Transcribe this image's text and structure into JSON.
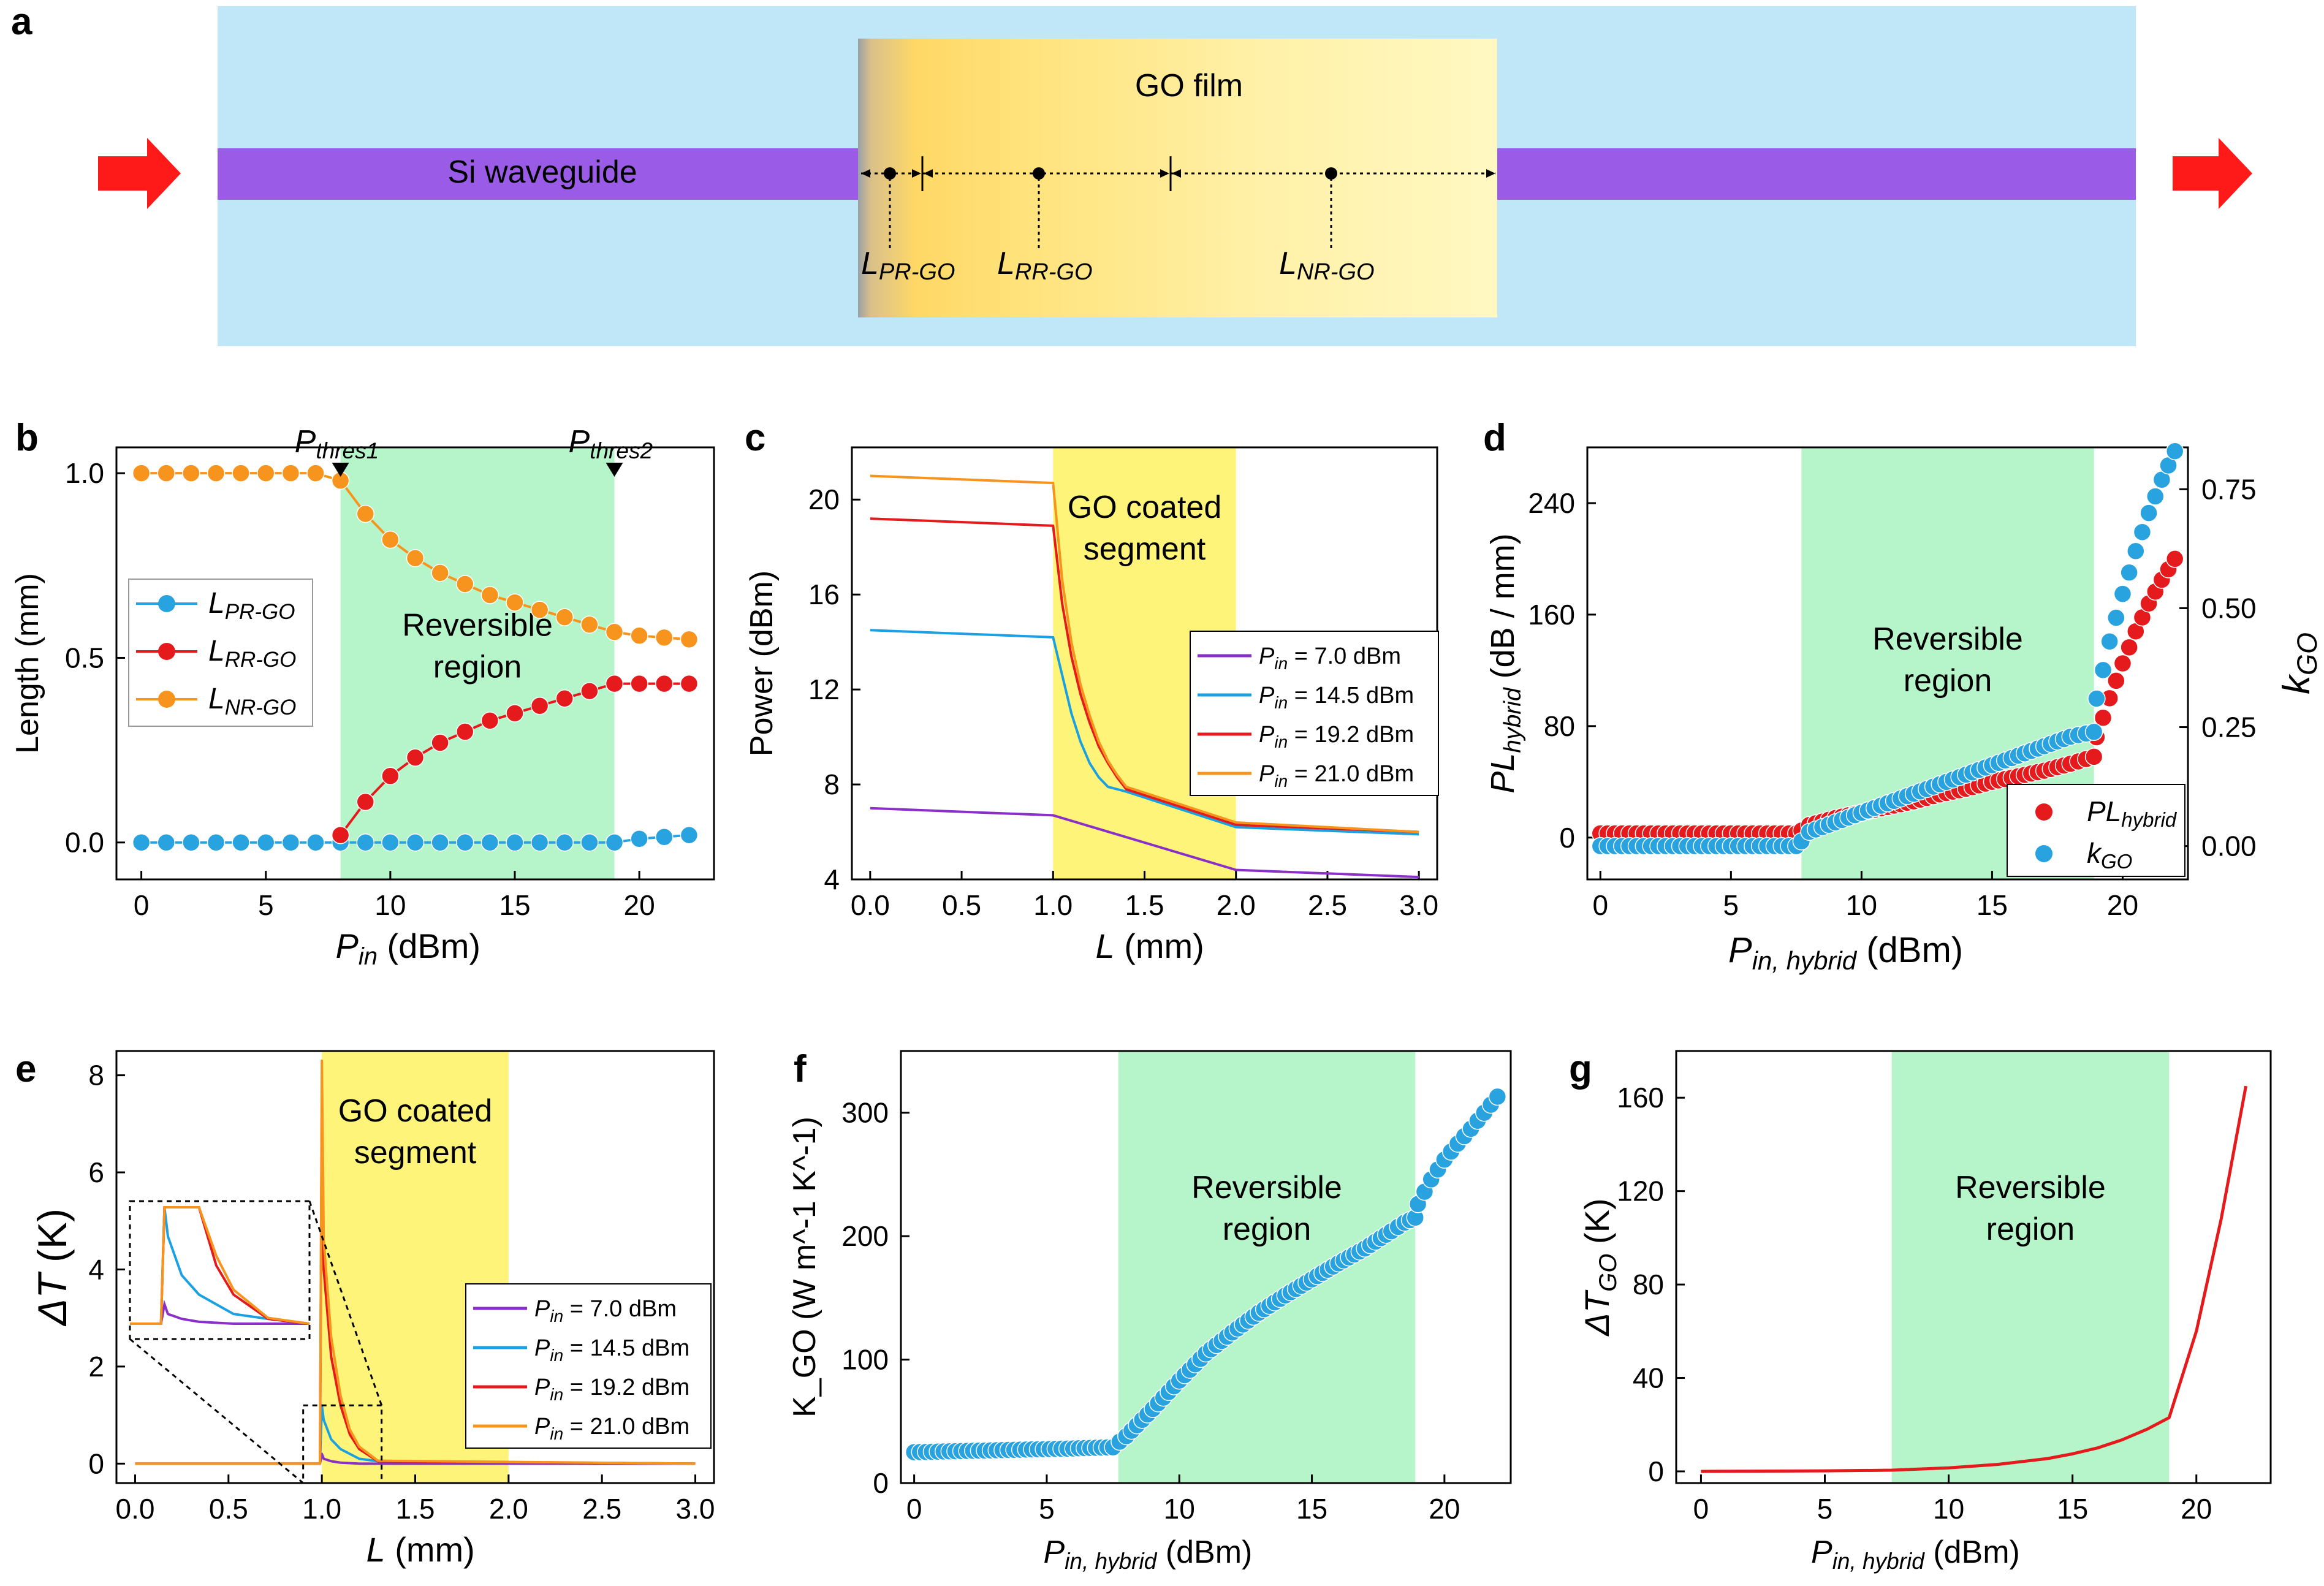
{
  "figure": {
    "panel_a": {
      "letter": "a",
      "film_label": "GO film",
      "waveguide_label": "Si waveguide",
      "lengths": [
        {
          "main": "L",
          "sub": "PR-GO"
        },
        {
          "main": "L",
          "sub": "RR-GO"
        },
        {
          "main": "L",
          "sub": "NR-GO"
        }
      ]
    }
  },
  "chart_data": [
    {
      "id": "b",
      "letter": "b",
      "type": "scatter",
      "xlim": [
        -1,
        23
      ],
      "ylim": [
        -0.1,
        1.07
      ],
      "xticks": [
        0,
        5,
        10,
        15,
        20
      ],
      "yticks": [
        0.0,
        0.5,
        1.0
      ],
      "xtick_labels": [
        "0",
        "5",
        "10",
        "15",
        "20"
      ],
      "ytick_labels": [
        "0.0",
        "0.5",
        "1.0"
      ],
      "xlabel": {
        "main": "P",
        "sub": "in",
        "tail": " (dBm)"
      },
      "ylabel": "Length (mm)",
      "region": {
        "x": [
          8.0,
          19.0
        ],
        "label": [
          "Reversible",
          "region"
        ]
      },
      "thresholds": [
        {
          "x": 8.0,
          "main": "P",
          "sub": "thres1"
        },
        {
          "x": 19.0,
          "main": "P",
          "sub": "thres2"
        }
      ],
      "legend": [
        "L_PR-GO",
        "L_RR-GO",
        "L_NR-GO"
      ],
      "series": [
        {
          "name": "L_PR-GO",
          "main": "L",
          "sub": "PR-GO",
          "color": "#29a3e0",
          "x": [
            0,
            1,
            2,
            3,
            4,
            5,
            6,
            7,
            8,
            9,
            10,
            11,
            12,
            13,
            14,
            15,
            16,
            17,
            18,
            19,
            20,
            21,
            22
          ],
          "y": [
            0,
            0,
            0,
            0,
            0,
            0,
            0,
            0,
            0,
            0,
            0,
            0,
            0,
            0,
            0,
            0,
            0,
            0,
            0,
            0,
            0.01,
            0.015,
            0.02
          ]
        },
        {
          "name": "L_RR-GO",
          "main": "L",
          "sub": "RR-GO",
          "color": "#e41a1c",
          "x": [
            8,
            9,
            10,
            11,
            12,
            13,
            14,
            15,
            16,
            17,
            18,
            19,
            20,
            21,
            22
          ],
          "y": [
            0.02,
            0.11,
            0.18,
            0.23,
            0.27,
            0.3,
            0.33,
            0.35,
            0.37,
            0.39,
            0.41,
            0.43,
            0.43,
            0.43,
            0.43
          ]
        },
        {
          "name": "L_NR-GO",
          "main": "L",
          "sub": "NR-GO",
          "color": "#f7941d",
          "x": [
            0,
            1,
            2,
            3,
            4,
            5,
            6,
            7,
            8,
            9,
            10,
            11,
            12,
            13,
            14,
            15,
            16,
            17,
            18,
            19,
            20,
            21,
            22
          ],
          "y": [
            1,
            1,
            1,
            1,
            1,
            1,
            1,
            1,
            0.98,
            0.89,
            0.82,
            0.77,
            0.73,
            0.7,
            0.67,
            0.65,
            0.63,
            0.61,
            0.59,
            0.57,
            0.56,
            0.555,
            0.55
          ]
        }
      ]
    },
    {
      "id": "c",
      "letter": "c",
      "type": "line",
      "xlim": [
        -0.1,
        3.1
      ],
      "ylim": [
        4,
        22.2
      ],
      "xticks": [
        0,
        0.5,
        1,
        1.5,
        2,
        2.5,
        3
      ],
      "yticks": [
        4,
        8,
        12,
        16,
        20
      ],
      "xtick_labels": [
        "0.0",
        "0.5",
        "1.0",
        "1.5",
        "2.0",
        "2.5",
        "3.0"
      ],
      "ytick_labels": [
        "4",
        "8",
        "12",
        "16",
        "20"
      ],
      "xlabel": {
        "main": "L",
        "sub": "",
        "tail": " (mm)"
      },
      "ylabel": "Power (dBm)",
      "region": {
        "x": [
          1.0,
          2.0
        ],
        "label": [
          "GO coated",
          "segment"
        ]
      },
      "legend_labels": [
        "= 7.0 dBm",
        "= 14.5 dBm",
        "= 19.2 dBm",
        "= 21.0 dBm"
      ],
      "series": [
        {
          "name": "Pin = 7.0 dBm",
          "color": "#8b2fc9",
          "x": [
            0,
            1,
            2,
            3
          ],
          "y": [
            7.0,
            6.7,
            4.4,
            4.1
          ]
        },
        {
          "name": "Pin = 14.5 dBm",
          "color": "#1ba1e2",
          "x": [
            0,
            1,
            1.05,
            1.1,
            1.15,
            1.2,
            1.25,
            1.3,
            1.4,
            2,
            3
          ],
          "y": [
            14.5,
            14.2,
            12.6,
            11.0,
            9.8,
            8.9,
            8.3,
            7.9,
            7.7,
            6.2,
            5.9
          ]
        },
        {
          "name": "Pin = 19.2 dBm",
          "color": "#e41a1c",
          "x": [
            0,
            1,
            1.05,
            1.1,
            1.15,
            1.2,
            1.25,
            1.3,
            1.35,
            1.4,
            2,
            3
          ],
          "y": [
            19.2,
            18.9,
            15.6,
            13.4,
            11.8,
            10.6,
            9.6,
            8.9,
            8.3,
            7.8,
            6.3,
            6.0
          ]
        },
        {
          "name": "Pin = 21.0 dBm",
          "color": "#f7941d",
          "x": [
            0,
            1,
            1.05,
            1.1,
            1.15,
            1.2,
            1.25,
            1.3,
            1.35,
            1.4,
            2,
            3
          ],
          "y": [
            21.0,
            20.7,
            16.6,
            14.0,
            12.2,
            10.9,
            9.8,
            9.0,
            8.4,
            7.9,
            6.4,
            6.0
          ]
        }
      ]
    },
    {
      "id": "d",
      "letter": "d",
      "type": "scatter",
      "xlim": [
        -0.5,
        22.5
      ],
      "ylim": [
        -30,
        280
      ],
      "y2lim": [
        -0.07,
        0.838
      ],
      "xticks": [
        0,
        5,
        10,
        15,
        20
      ],
      "yticks": [
        0,
        80,
        160,
        240
      ],
      "y2ticks": [
        0,
        0.25,
        0.5,
        0.75
      ],
      "xtick_labels": [
        "0",
        "5",
        "10",
        "15",
        "20"
      ],
      "ytick_labels": [
        "0",
        "80",
        "160",
        "240"
      ],
      "y2tick_labels": [
        "0.00",
        "0.25",
        "0.50",
        "0.75"
      ],
      "xlabel": {
        "main": "P",
        "sub": "in, hybrid",
        "tail": " (dBm)"
      },
      "ylabel": {
        "main": "PL",
        "sub": "hybrid",
        "tail": " (dB / mm)"
      },
      "y2label": {
        "main": "k",
        "sub": "GO"
      },
      "region": {
        "x": [
          7.7,
          18.9
        ],
        "label": [
          "Reversible",
          "region"
        ]
      },
      "series": [
        {
          "name": "PL_hybrid",
          "main": "PL",
          "sub": "hybrid",
          "color": "#e41a1c",
          "axis": "left",
          "x": [
            0,
            7.5,
            7.7,
            8,
            9,
            10,
            11,
            12,
            13,
            14,
            15,
            16,
            17,
            18,
            18.9,
            19,
            19.5,
            20,
            20.5,
            21,
            21.5,
            22
          ],
          "y": [
            3,
            3,
            5,
            9,
            14,
            18,
            22,
            26,
            31,
            35,
            40,
            44,
            48,
            53,
            58,
            72,
            100,
            125,
            148,
            168,
            185,
            200
          ]
        },
        {
          "name": "k_GO",
          "main": "k",
          "sub": "GO",
          "color": "#29a3e0",
          "axis": "right",
          "x": [
            0,
            7.5,
            7.7,
            8,
            9,
            10,
            11,
            12,
            13,
            14,
            15,
            16,
            17,
            18,
            18.9,
            19,
            19.5,
            20,
            20.5,
            21,
            21.5,
            22
          ],
          "y": [
            0.0,
            0.0,
            0.01,
            0.03,
            0.05,
            0.07,
            0.09,
            0.11,
            0.13,
            0.15,
            0.17,
            0.19,
            0.21,
            0.23,
            0.24,
            0.31,
            0.43,
            0.53,
            0.62,
            0.7,
            0.77,
            0.83
          ]
        }
      ]
    },
    {
      "id": "e",
      "letter": "e",
      "type": "line",
      "xlim": [
        -0.1,
        3.1
      ],
      "ylim": [
        -0.4,
        8.5
      ],
      "xticks": [
        0,
        0.5,
        1,
        1.5,
        2,
        2.5,
        3
      ],
      "yticks": [
        0,
        2,
        4,
        6,
        8
      ],
      "xtick_labels": [
        "0.0",
        "0.5",
        "1.0",
        "1.5",
        "2.0",
        "2.5",
        "3.0"
      ],
      "ytick_labels": [
        "0",
        "2",
        "4",
        "6",
        "8"
      ],
      "xlabel": {
        "main": "L",
        "sub": "",
        "tail": " (mm)"
      },
      "ylabel": {
        "main": "ΔT",
        "tail": " (K)"
      },
      "region": {
        "x": [
          1.0,
          2.0
        ],
        "label": [
          "GO coated",
          "segment"
        ]
      },
      "legend_labels": [
        "= 7.0 dBm",
        "= 14.5 dBm",
        "= 19.2 dBm",
        "= 21.0 dBm"
      ],
      "series": [
        {
          "name": "Pin = 7.0 dBm",
          "color": "#8b2fc9",
          "x": [
            0,
            0.99,
            1.0,
            1.01,
            1.05,
            1.1,
            1.2,
            3
          ],
          "y": [
            0,
            0,
            0.2,
            0.1,
            0.05,
            0.02,
            0,
            0
          ]
        },
        {
          "name": "Pin = 14.5 dBm",
          "color": "#1ba1e2",
          "x": [
            0,
            0.99,
            1.0,
            1.01,
            1.05,
            1.1,
            1.2,
            1.3,
            3
          ],
          "y": [
            0,
            0,
            1.2,
            0.9,
            0.5,
            0.3,
            0.1,
            0.05,
            0
          ]
        },
        {
          "name": "Pin = 19.2 dBm",
          "color": "#e41a1c",
          "x": [
            0,
            0.99,
            1.0,
            1.01,
            1.05,
            1.1,
            1.15,
            1.2,
            1.3,
            3
          ],
          "y": [
            0,
            0,
            7.6,
            4.0,
            2.2,
            1.2,
            0.6,
            0.3,
            0.05,
            0
          ]
        },
        {
          "name": "Pin = 21.0 dBm",
          "color": "#f7941d",
          "x": [
            0,
            0.99,
            1.0,
            1.01,
            1.05,
            1.1,
            1.15,
            1.2,
            1.3,
            3
          ],
          "y": [
            0,
            0,
            8.3,
            4.6,
            2.6,
            1.4,
            0.7,
            0.35,
            0.06,
            0
          ]
        }
      ]
    },
    {
      "id": "f",
      "letter": "f",
      "type": "scatter",
      "xlim": [
        -0.5,
        22.5
      ],
      "ylim": [
        0,
        350
      ],
      "xticks": [
        0,
        5,
        10,
        15,
        20
      ],
      "yticks": [
        0,
        100,
        200,
        300
      ],
      "xtick_labels": [
        "0",
        "5",
        "10",
        "15",
        "20"
      ],
      "ytick_labels": [
        "0",
        "100",
        "200",
        "300"
      ],
      "xlabel": {
        "main": "P",
        "sub": "in, hybrid",
        "tail": " (dBm)"
      },
      "ylabel": "K_GO (W m^-1 K^-1)",
      "region": {
        "x": [
          7.7,
          18.9
        ],
        "label": [
          "Reversible",
          "region"
        ]
      },
      "series": [
        {
          "name": "K_GO",
          "color": "#29a3e0",
          "x": [
            0,
            2,
            4,
            6,
            7.5,
            8,
            9,
            10,
            11,
            12,
            13,
            14,
            15,
            16,
            17,
            18,
            18.5,
            18.9,
            19,
            19.5,
            20,
            20.5,
            21,
            21.5,
            22
          ],
          "y": [
            25,
            26,
            27,
            28,
            29,
            38,
            60,
            83,
            105,
            122,
            138,
            152,
            165,
            178,
            190,
            204,
            211,
            215,
            226,
            246,
            262,
            275,
            287,
            300,
            313
          ]
        }
      ]
    },
    {
      "id": "g",
      "letter": "g",
      "type": "line",
      "xlim": [
        -1,
        23
      ],
      "ylim": [
        -5,
        180
      ],
      "xticks": [
        0,
        5,
        10,
        15,
        20
      ],
      "yticks": [
        0,
        40,
        80,
        120,
        160
      ],
      "xtick_labels": [
        "0",
        "5",
        "10",
        "15",
        "20"
      ],
      "ytick_labels": [
        "0",
        "40",
        "80",
        "120",
        "160"
      ],
      "xlabel": {
        "main": "P",
        "sub": "in, hybrid",
        "tail": " (dBm)"
      },
      "ylabel": {
        "main": "ΔT",
        "sub": "GO",
        "tail": " (K)"
      },
      "region": {
        "x": [
          7.7,
          18.9
        ],
        "label": [
          "Reversible",
          "region"
        ]
      },
      "series": [
        {
          "name": "dT_GO",
          "color": "#e41a1c",
          "x": [
            0,
            5,
            7.7,
            10,
            12,
            14,
            15,
            16,
            17,
            18,
            18.9,
            20,
            21,
            22
          ],
          "y": [
            0,
            0.2,
            0.5,
            1.5,
            3,
            5.5,
            7.5,
            10,
            13.5,
            18,
            23,
            60,
            108,
            165
          ]
        }
      ]
    }
  ]
}
